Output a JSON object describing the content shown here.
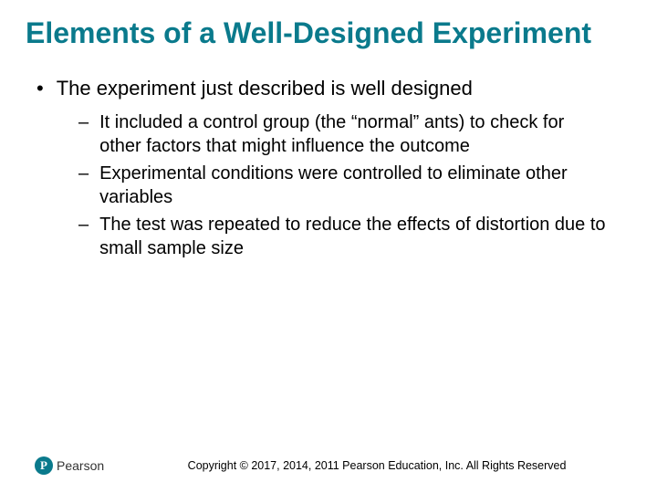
{
  "title": "Elements of a Well-Designed Experiment",
  "mainBullet": "The experiment just described is well designed",
  "subBullets": [
    "It included a control group (the “normal” ants) to check for other factors that might influence the outcome",
    "Experimental conditions were controlled to eliminate other variables",
    "The test was repeated to reduce the effects of distortion due to small sample size"
  ],
  "logo": {
    "letter": "P",
    "brand": "Pearson"
  },
  "copyright": "Copyright © 2017, 2014, 2011 Pearson Education, Inc. All Rights Reserved",
  "colors": {
    "accent": "#0a7a8c",
    "text": "#000000",
    "background": "#ffffff"
  }
}
